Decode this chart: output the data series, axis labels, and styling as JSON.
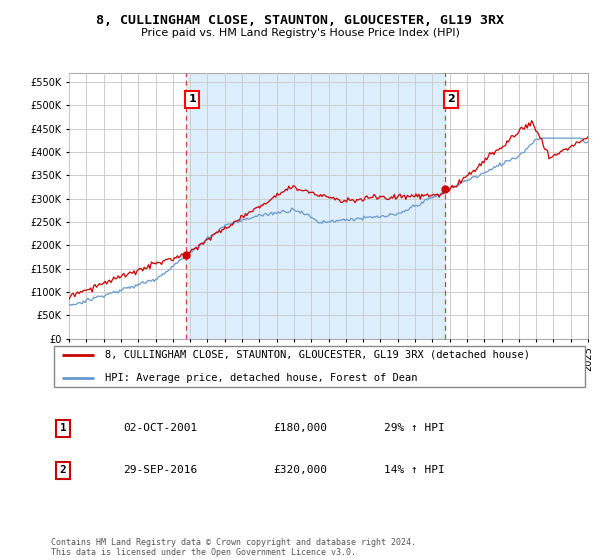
{
  "title": "8, CULLINGHAM CLOSE, STAUNTON, GLOUCESTER, GL19 3RX",
  "subtitle": "Price paid vs. HM Land Registry's House Price Index (HPI)",
  "red_line_label": "8, CULLINGHAM CLOSE, STAUNTON, GLOUCESTER, GL19 3RX (detached house)",
  "blue_line_label": "HPI: Average price, detached house, Forest of Dean",
  "purchase1_date": "02-OCT-2001",
  "purchase1_price": 180000,
  "purchase1_price_str": "£180,000",
  "purchase1_hpi": "29% ↑ HPI",
  "purchase2_date": "29-SEP-2016",
  "purchase2_price": 320000,
  "purchase2_price_str": "£320,000",
  "purchase2_hpi": "14% ↑ HPI",
  "footer": "Contains HM Land Registry data © Crown copyright and database right 2024.\nThis data is licensed under the Open Government Licence v3.0.",
  "ylim": [
    0,
    570000
  ],
  "yticks": [
    0,
    50000,
    100000,
    150000,
    200000,
    250000,
    300000,
    350000,
    400000,
    450000,
    500000,
    550000
  ],
  "red_color": "#cc0000",
  "blue_color": "#6699cc",
  "blue_fill_color": "#ddeeff",
  "dashed_color": "#cc4444",
  "grid_color": "#cccccc",
  "bg_color": "#ffffff",
  "p1_year": 2001.79,
  "p2_year": 2016.75
}
